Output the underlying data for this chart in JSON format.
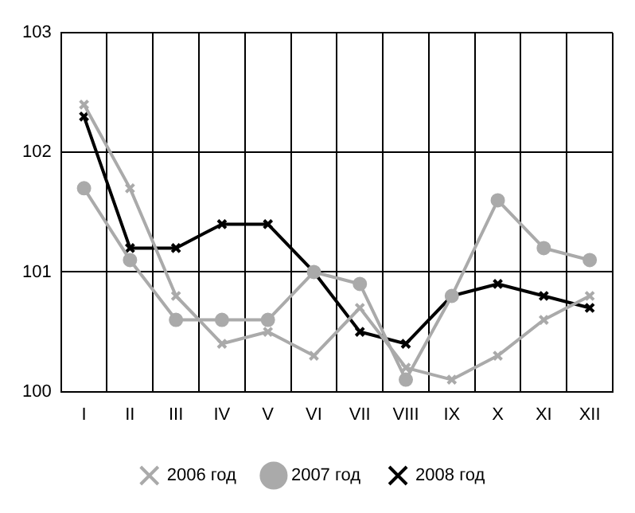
{
  "chart_data": {
    "type": "line",
    "categories": [
      "I",
      "II",
      "III",
      "IV",
      "V",
      "VI",
      "VII",
      "VIII",
      "IX",
      "X",
      "XI",
      "XII"
    ],
    "series": [
      {
        "name": "2006 год",
        "color": "#aaaaaa",
        "marker": "cross",
        "values": [
          102.4,
          101.7,
          100.8,
          100.4,
          100.5,
          100.3,
          100.7,
          100.2,
          100.1,
          100.3,
          100.6,
          100.8
        ]
      },
      {
        "name": "2007 год",
        "color": "#aaaaaa",
        "marker": "circle",
        "values": [
          101.7,
          101.1,
          100.6,
          100.6,
          100.6,
          101.0,
          100.9,
          100.1,
          100.8,
          101.6,
          101.2,
          101.1
        ]
      },
      {
        "name": "2008 год",
        "color": "#000000",
        "marker": "cross",
        "values": [
          102.3,
          101.2,
          101.2,
          101.4,
          101.4,
          101.0,
          100.5,
          100.4,
          100.8,
          100.9,
          100.8,
          100.7
        ]
      }
    ],
    "ylim": [
      100,
      103
    ],
    "yticks": [
      100,
      101,
      102,
      103
    ],
    "grid": true,
    "legend": "bottom",
    "line_style": "solid"
  }
}
